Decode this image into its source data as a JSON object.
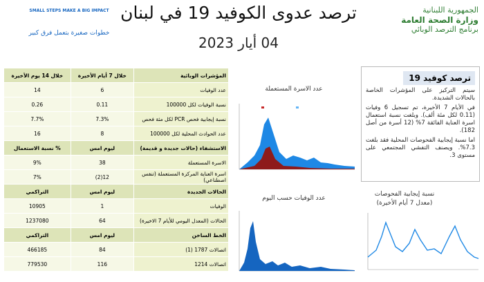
{
  "header": {
    "logo_en": "SMALL STEPS MAKE A BIG IMPACT",
    "logo_ar": "خطوات صغيرة بتعمل فرق كبير",
    "title": "ترصد عدوى الكوفيد 19 في لبنان",
    "date": "04 أيار 2023",
    "ministry": [
      "الجمهورية اللبنانية",
      "وزارة الصحة العامة",
      "برنامج الترصد الوبائي"
    ]
  },
  "table": {
    "rows": [
      [
        "المؤشرات الوبائية",
        "خلال 7 أيام الأخيرة",
        "خلال 14 يوم الأخيرة"
      ],
      [
        "عدد الوفيات",
        "6",
        "14"
      ],
      [
        "نسبة الوفيات لكل 100000",
        "0.11",
        "0.26"
      ],
      [
        "نسبة إيجابية فحص PCR لكل مئة فحص",
        "7.3%",
        "7.7%"
      ],
      [
        "عدد الحوادث المحلية لكل 100000",
        "8",
        "16"
      ],
      [
        "الاستشفاء (حالات جديدة و قديمة)",
        "ليوم امس",
        "% نسبة الاستعمال"
      ],
      [
        "الاسرة المستعملة",
        "38",
        "9%"
      ],
      [
        "اسرة العناية المركزة المستعملة (تنفس اصطناعي)",
        "12(2)",
        "7%"
      ],
      [
        "الحالات الجديدة",
        "ليوم امس",
        "التراكمي"
      ],
      [
        "الوفيات",
        "1",
        "10905"
      ],
      [
        "الحالات (المعدل اليومي للأيام 7 الاخيرة)",
        "64",
        "1237080"
      ],
      [
        "الخط الساخن",
        "ليوم امس",
        "التراكمي"
      ],
      [
        "اتصالات 1787 (1)",
        "84",
        "466185"
      ],
      [
        "اتصالات 1214",
        "116",
        "779530"
      ]
    ],
    "header_rows": [
      0,
      5,
      8,
      11
    ]
  },
  "panel": {
    "heading": "ترصد كوفيد 19",
    "paragraphs": [
      "سيتم التركيز على المؤشرات الخاصة بالحالات الشديدة.",
      "في الأيام 7 الأخيرة، تم تسجيل 6 وفيات (0.11 لكل مئة ألف). وبلغت نسبة استعمال اسرة العناية الفائقة 7% (12 أسرة من أصل 182).",
      "اما نسبة إيجابية الفحوصات المحلية فقد بلغت 7.3%. ويصنف التفشي المجتمعي على مستوى 3."
    ]
  },
  "charts": {
    "beds_title": "عدد الاسرة المستعملة",
    "deaths_title": "عدد الوفيات حسب اليوم",
    "positivity_title": "نسبة إيجابية الفحوصات",
    "positivity_subtitle": "(معدل 7 أيام الأخيرة)"
  }
}
